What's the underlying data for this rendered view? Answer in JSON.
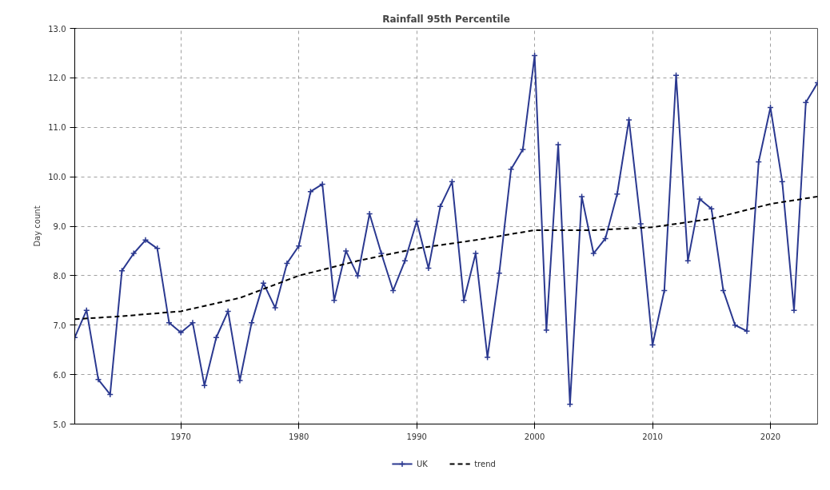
{
  "chart_data": {
    "type": "line",
    "title": "Rainfall 95th Percentile",
    "ylabel": "Day count",
    "xlim": [
      1961,
      2024
    ],
    "xticks": [
      1970,
      1980,
      1990,
      2000,
      2010,
      2020
    ],
    "ylim": [
      5.0,
      13.0
    ],
    "yticks": [
      {
        "value": 5,
        "label": "5.0"
      },
      {
        "value": 6,
        "label": "6.0"
      },
      {
        "value": 7,
        "label": "7.0"
      },
      {
        "value": 8,
        "label": "8.0"
      },
      {
        "value": 9,
        "label": "9.0"
      },
      {
        "value": 10,
        "label": "10.0"
      },
      {
        "value": 11,
        "label": "11.0"
      },
      {
        "value": 12,
        "label": "12.0"
      },
      {
        "value": 13,
        "label": "13.0"
      }
    ],
    "grid": true,
    "legend": "bottom",
    "series": [
      {
        "name": "UK",
        "color": "#2b3990",
        "marker": "cross",
        "line_style": "solid",
        "x": [
          1961,
          1962,
          1963,
          1964,
          1965,
          1966,
          1967,
          1968,
          1969,
          1970,
          1971,
          1972,
          1973,
          1974,
          1975,
          1976,
          1977,
          1978,
          1979,
          1980,
          1981,
          1982,
          1983,
          1984,
          1985,
          1986,
          1987,
          1988,
          1989,
          1990,
          1991,
          1992,
          1993,
          1994,
          1995,
          1996,
          1997,
          1998,
          1999,
          2000,
          2001,
          2002,
          2003,
          2004,
          2005,
          2006,
          2007,
          2008,
          2009,
          2010,
          2011,
          2012,
          2013,
          2014,
          2015,
          2016,
          2017,
          2018,
          2019,
          2020,
          2021,
          2022,
          2023,
          2024
        ],
        "values": [
          6.75,
          7.3,
          5.9,
          5.6,
          8.1,
          8.45,
          8.72,
          8.55,
          7.05,
          6.85,
          7.05,
          5.78,
          6.75,
          7.28,
          5.88,
          7.05,
          7.85,
          7.35,
          8.25,
          8.6,
          9.7,
          9.85,
          7.5,
          8.5,
          8.0,
          9.25,
          8.45,
          7.7,
          8.3,
          9.1,
          8.15,
          9.4,
          9.9,
          7.5,
          8.45,
          6.35,
          8.05,
          10.15,
          10.55,
          12.45,
          6.9,
          10.65,
          5.4,
          9.6,
          8.45,
          8.75,
          9.65,
          11.15,
          9.05,
          6.6,
          7.7,
          12.05,
          8.3,
          9.55,
          9.35,
          7.7,
          7.0,
          6.88,
          10.3,
          11.4,
          9.9,
          7.3,
          11.5,
          11.9
        ]
      },
      {
        "name": "trend",
        "color": "#000000",
        "marker": "none",
        "line_style": "dashed",
        "x": [
          1961,
          1965,
          1970,
          1975,
          1980,
          1985,
          1990,
          1995,
          2000,
          2005,
          2010,
          2015,
          2020,
          2024
        ],
        "values": [
          7.12,
          7.18,
          7.28,
          7.55,
          8.0,
          8.3,
          8.55,
          8.72,
          8.92,
          8.92,
          8.98,
          9.15,
          9.45,
          9.6
        ]
      }
    ]
  }
}
